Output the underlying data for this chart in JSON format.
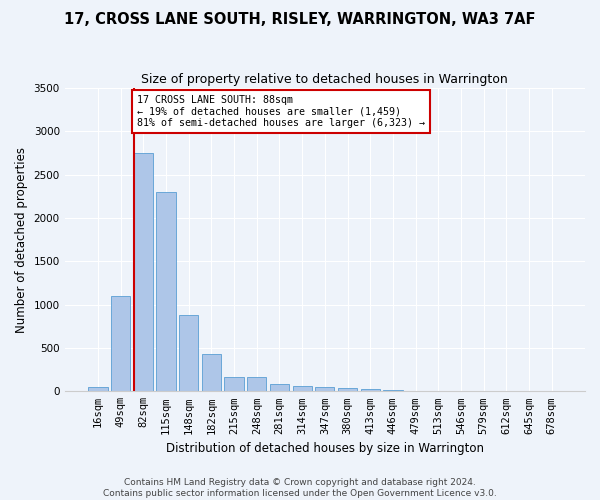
{
  "title": "17, CROSS LANE SOUTH, RISLEY, WARRINGTON, WA3 7AF",
  "subtitle": "Size of property relative to detached houses in Warrington",
  "xlabel": "Distribution of detached houses by size in Warrington",
  "ylabel": "Number of detached properties",
  "footer_line1": "Contains HM Land Registry data © Crown copyright and database right 2024.",
  "footer_line2": "Contains public sector information licensed under the Open Government Licence v3.0.",
  "bin_labels": [
    "16sqm",
    "49sqm",
    "82sqm",
    "115sqm",
    "148sqm",
    "182sqm",
    "215sqm",
    "248sqm",
    "281sqm",
    "314sqm",
    "347sqm",
    "380sqm",
    "413sqm",
    "446sqm",
    "479sqm",
    "513sqm",
    "546sqm",
    "579sqm",
    "612sqm",
    "645sqm",
    "678sqm"
  ],
  "bar_heights": [
    50,
    1100,
    2750,
    2300,
    880,
    430,
    170,
    170,
    90,
    60,
    50,
    35,
    25,
    20,
    5,
    5,
    3,
    2,
    1,
    1,
    0
  ],
  "bar_color": "#aec6e8",
  "bar_edge_color": "#5a9fd4",
  "bar_width": 0.85,
  "red_line_color": "#cc0000",
  "annotation_text": "17 CROSS LANE SOUTH: 88sqm\n← 19% of detached houses are smaller (1,459)\n81% of semi-detached houses are larger (6,323) →",
  "annotation_box_color": "#ffffff",
  "annotation_box_edge": "#cc0000",
  "ylim": [
    0,
    3500
  ],
  "yticks": [
    0,
    500,
    1000,
    1500,
    2000,
    2500,
    3000,
    3500
  ],
  "bg_color": "#eef3fa",
  "grid_color": "#ffffff",
  "title_fontsize": 10.5,
  "subtitle_fontsize": 9,
  "axis_label_fontsize": 8.5,
  "tick_fontsize": 7.5,
  "footer_fontsize": 6.5
}
